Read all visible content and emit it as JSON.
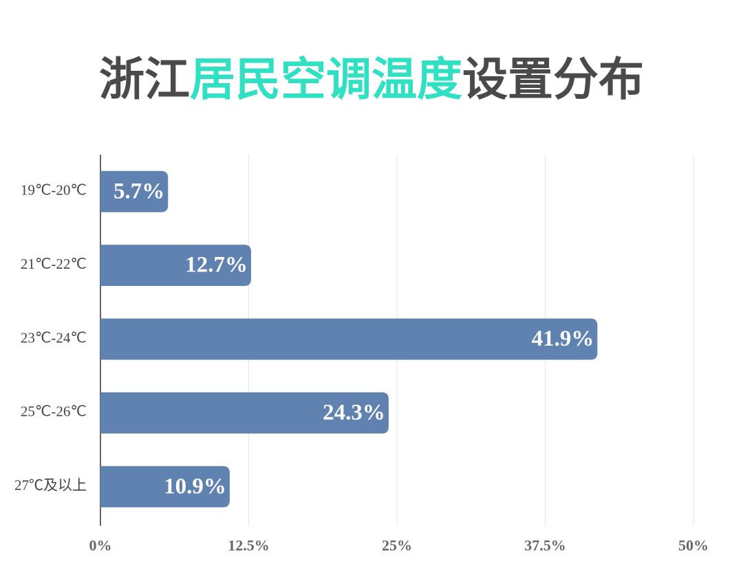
{
  "chart_data": {
    "type": "barh",
    "title": [
      "浙江",
      "居民空调温度",
      "设置分布"
    ],
    "title_colors": [
      "#4a4a4a",
      "#2fe0c3",
      "#4a4a4a"
    ],
    "categories": [
      "19℃-20℃",
      "21℃-22℃",
      "23℃-24℃",
      "25℃-26℃",
      "27℃及以上"
    ],
    "values": [
      5.7,
      12.7,
      41.9,
      24.3,
      10.9
    ],
    "value_labels": [
      "5.7%",
      "12.7%",
      "41.9%",
      "24.3%",
      "10.9%"
    ],
    "color": "#5f82b0",
    "xlim": [
      0,
      50
    ],
    "xticks": [
      {
        "value": 0,
        "label": "0%"
      },
      {
        "value": 12.5,
        "label": "12.5%"
      },
      {
        "value": 25,
        "label": "25%"
      },
      {
        "value": 37.5,
        "label": "37.5%"
      },
      {
        "value": 50,
        "label": "50%"
      }
    ],
    "grid": true
  }
}
